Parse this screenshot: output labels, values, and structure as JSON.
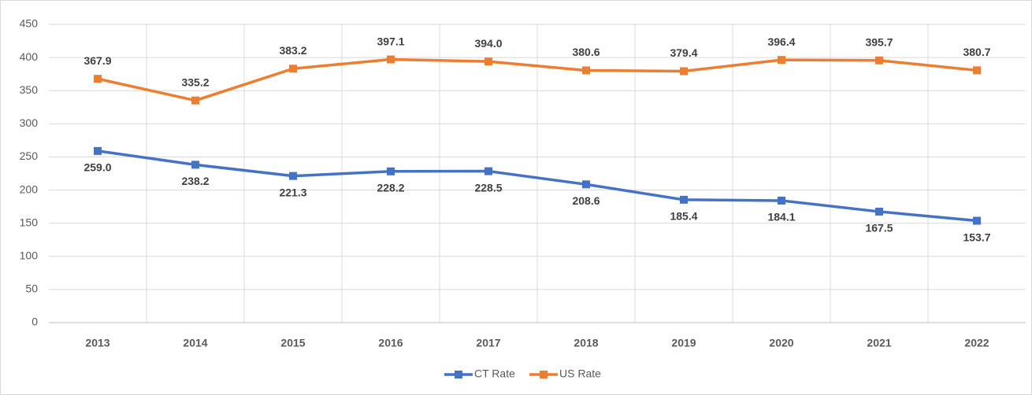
{
  "chart_data": {
    "type": "line",
    "categories": [
      "2013",
      "2014",
      "2015",
      "2016",
      "2017",
      "2018",
      "2019",
      "2020",
      "2021",
      "2022"
    ],
    "series": [
      {
        "name": "CT Rate",
        "color": "#4472c4",
        "values": [
          259.0,
          238.2,
          221.3,
          228.2,
          228.5,
          208.6,
          185.4,
          184.1,
          167.5,
          153.7
        ],
        "value_labels": [
          "259.0",
          "238.2",
          "221.3",
          "228.2",
          "228.5",
          "208.6",
          "185.4",
          "184.1",
          "167.5",
          "153.7"
        ]
      },
      {
        "name": "US Rate",
        "color": "#ed7d31",
        "values": [
          367.9,
          335.2,
          383.2,
          397.1,
          394.0,
          380.6,
          379.4,
          396.4,
          395.7,
          380.7
        ],
        "value_labels": [
          "367.9",
          "335.2",
          "383.2",
          "397.1",
          "394.0",
          "380.6",
          "379.4",
          "396.4",
          "395.7",
          "380.7"
        ]
      }
    ],
    "ylim": [
      0,
      450
    ],
    "yticks": [
      0,
      50,
      100,
      150,
      200,
      250,
      300,
      350,
      400,
      450
    ],
    "grid": true,
    "legend": "bottom"
  }
}
